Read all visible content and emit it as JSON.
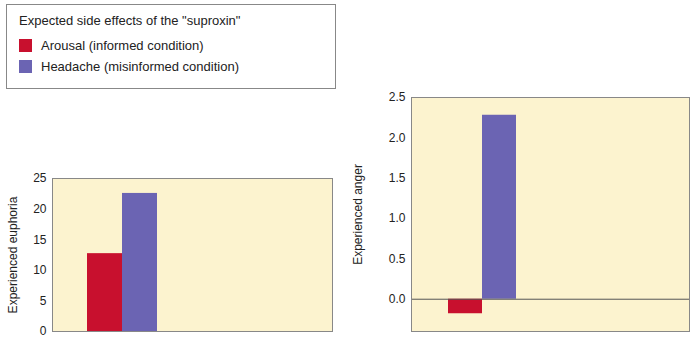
{
  "chart_data": [
    {
      "type": "bar",
      "legend": "top-left",
      "legend_title": "Expected side effects of the \"suproxin\"",
      "y_label": "Experienced euphoria",
      "categories": [
        null,
        null
      ],
      "series": [
        {
          "name": "Arousal (informed condition)",
          "color": "#c8102e",
          "values": [
            12.72,
            null
          ]
        },
        {
          "name": "Headache (misinformed condition)",
          "color": "#6b64b3",
          "values": [
            22.56,
            null
          ]
        }
      ],
      "ylim": [
        0,
        25
      ],
      "yticks": [
        0,
        5,
        10,
        15,
        20,
        25
      ]
    },
    {
      "type": "bar",
      "y_label": "Experienced anger",
      "categories": [
        null,
        null
      ],
      "series": [
        {
          "name": "Arousal (informed condition)",
          "color": "#c8102e",
          "values": [
            -0.18,
            null
          ]
        },
        {
          "name": "Headache (misinformed condition)",
          "color": "#6b64b3",
          "values": [
            2.28,
            null
          ]
        }
      ],
      "ylim": [
        -0.4,
        2.5
      ],
      "yticks": [
        {
          "value": 0,
          "label": "0.0"
        },
        {
          "value": 0.5,
          "label": "0.5"
        },
        {
          "value": 1,
          "label": "1.0"
        },
        {
          "value": 1.5,
          "label": "1.5"
        },
        {
          "value": 2,
          "label": "2.0"
        },
        {
          "value": 2.5,
          "label": "2.5"
        }
      ]
    }
  ]
}
